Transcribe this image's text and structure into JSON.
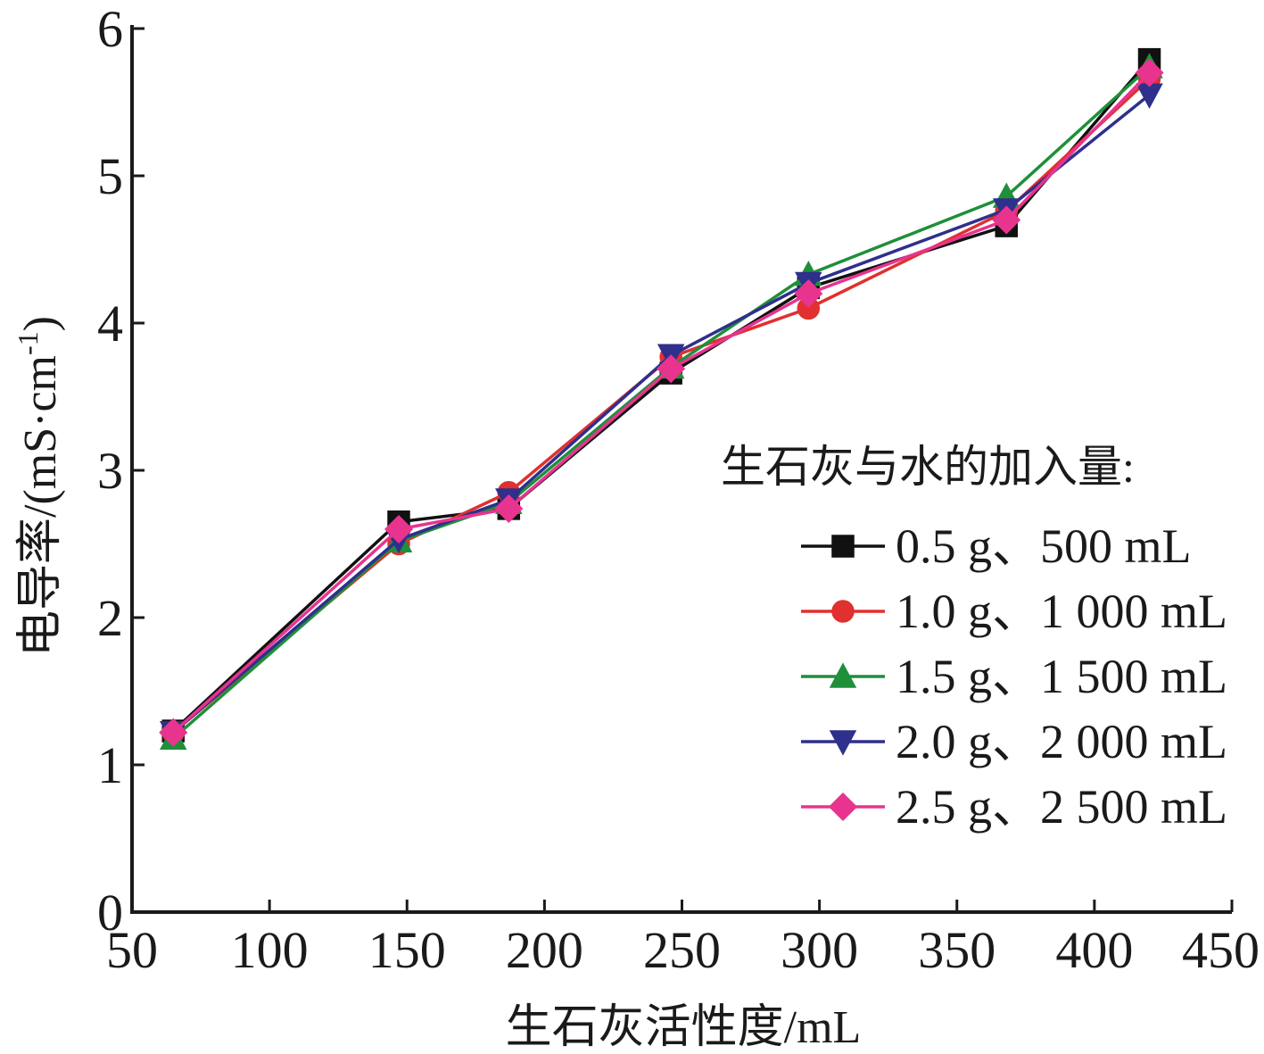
{
  "chart_data": {
    "type": "line",
    "xlabel": "生石灰活性度/mL",
    "ylabel": "电导率/(mS·cm",
    "ylabel_sup": "-1",
    "ylabel_close": ")",
    "xlim": [
      50,
      450
    ],
    "ylim": [
      0,
      6
    ],
    "x_ticks": [
      50,
      100,
      150,
      200,
      250,
      300,
      350,
      400,
      450
    ],
    "y_ticks": [
      0,
      1,
      2,
      3,
      4,
      5,
      6
    ],
    "grid": false,
    "legend_title": "生石灰与水的加入量:",
    "legend_position": "right",
    "x": [
      65,
      147,
      187,
      246,
      296,
      368,
      420
    ],
    "series": [
      {
        "name": "0.5 g、500 mL",
        "color": "#111111",
        "marker": "square",
        "values": [
          1.23,
          2.65,
          2.74,
          3.66,
          4.24,
          4.66,
          5.79
        ]
      },
      {
        "name": "1.0 g、1 000 mL",
        "color": "#e0302f",
        "marker": "circle",
        "values": [
          1.22,
          2.5,
          2.85,
          3.77,
          4.1,
          4.76,
          5.66
        ]
      },
      {
        "name": "1.5 g、1 500 mL",
        "color": "#1f8f3a",
        "marker": "triangle-up",
        "values": [
          1.18,
          2.52,
          2.78,
          3.7,
          4.33,
          4.86,
          5.74
        ]
      },
      {
        "name": "2.0 g、2 000 mL",
        "color": "#2f2f8c",
        "marker": "triangle-down",
        "values": [
          1.22,
          2.53,
          2.8,
          3.78,
          4.27,
          4.77,
          5.55
        ]
      },
      {
        "name": "2.5 g、2 500 mL",
        "color": "#e8338f",
        "marker": "diamond",
        "values": [
          1.22,
          2.6,
          2.74,
          3.69,
          4.2,
          4.7,
          5.7
        ]
      }
    ]
  }
}
